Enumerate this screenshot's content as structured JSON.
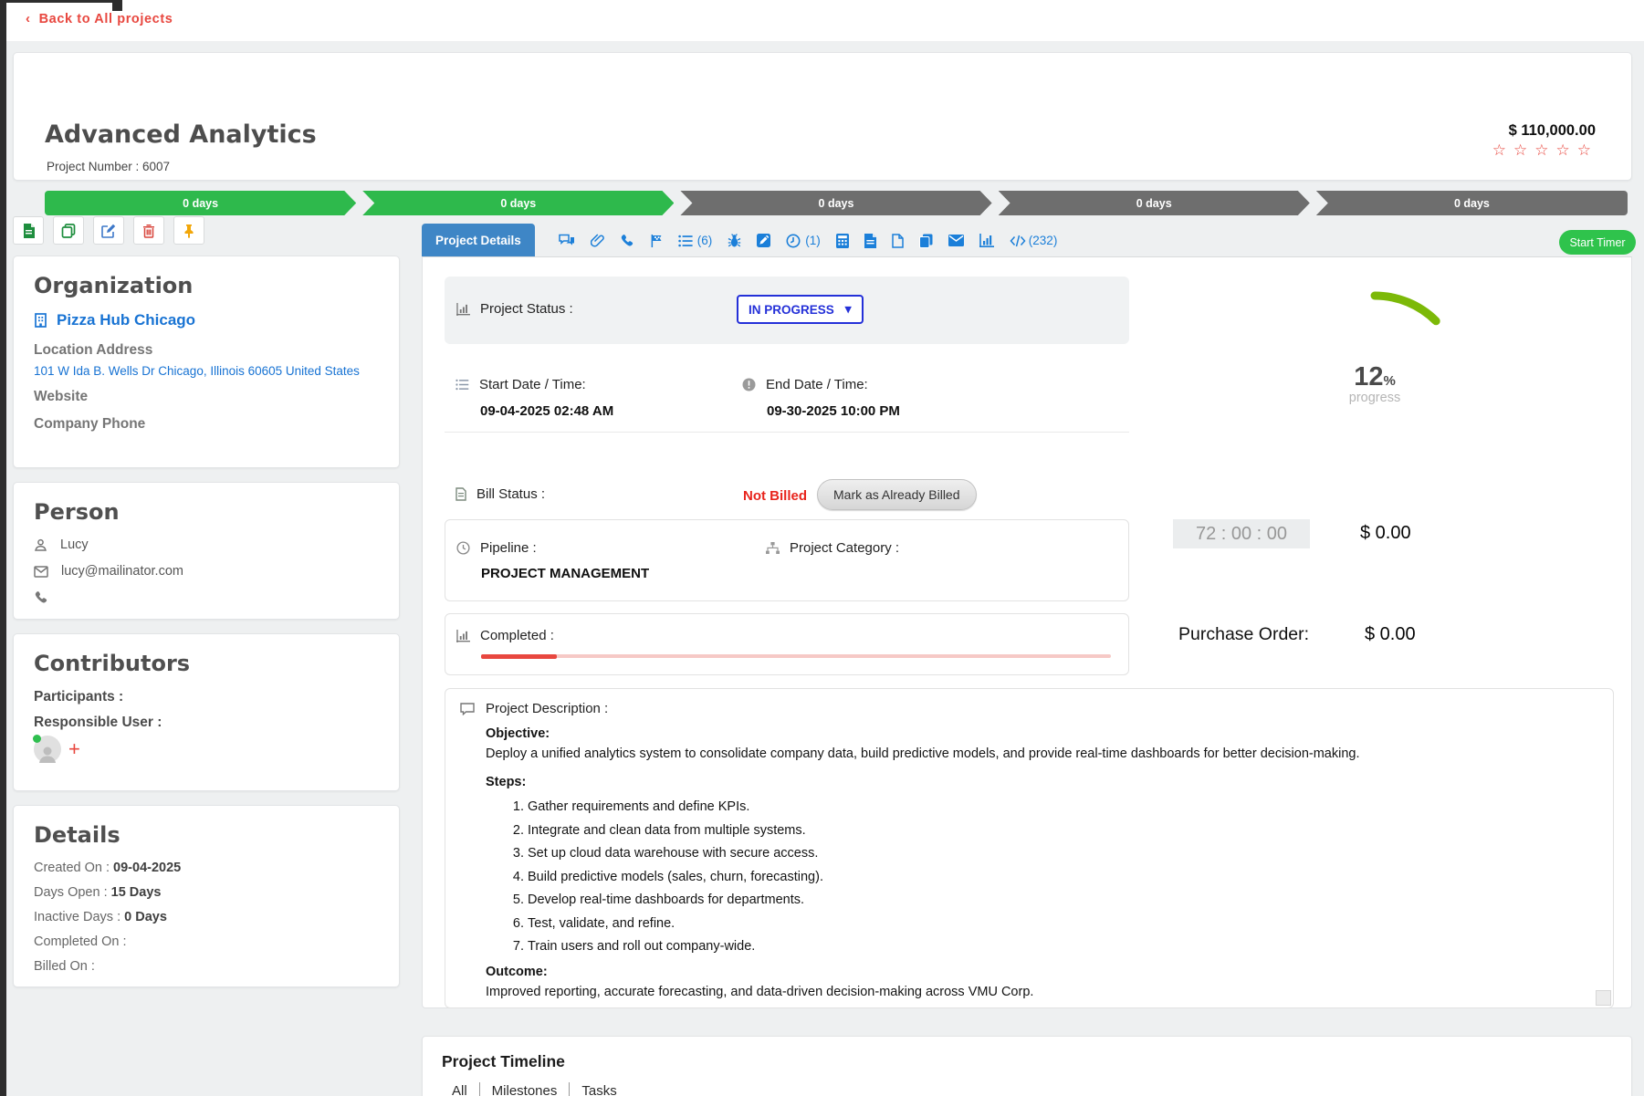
{
  "glyphs": {
    "back_chevron": "‹",
    "star": "☆",
    "caret_down": "▾",
    "plus": "+"
  },
  "colors": {
    "accent_red": "#e8473f",
    "stage_green": "#2eb94c",
    "stage_gray": "#6e6e6e",
    "icon_blue": "#1b7fd9",
    "tab_active_blue": "#3e86c6",
    "status_blue": "#2430d8",
    "gauge_green": "#7cb908",
    "timer_green": "#2fc34c"
  },
  "back_link": "Back to All projects",
  "header": {
    "title": "Advanced Analytics",
    "project_number": "Project Number : 6007",
    "amount": "$ 110,000.00",
    "stages": [
      {
        "label": "0 days"
      },
      {
        "label": "0 days"
      },
      {
        "label": "0 days"
      },
      {
        "label": "0 days"
      },
      {
        "label": "0 days"
      }
    ]
  },
  "sidebar": {
    "organization": {
      "title": "Organization",
      "company": "Pizza Hub Chicago",
      "location_label": "Location Address",
      "address": "101 W Ida B. Wells Dr Chicago, Illinois 60605 United States",
      "website_label": "Website",
      "phone_label": "Company Phone"
    },
    "person": {
      "title": "Person",
      "name": "Lucy",
      "email": "lucy@mailinator.com"
    },
    "contributors": {
      "title": "Contributors",
      "participants_label": "Participants :",
      "responsible_label": "Responsible User :"
    },
    "details": {
      "title": "Details",
      "rows": [
        {
          "label": "Created On : ",
          "value": "09-04-2025"
        },
        {
          "label": "Days Open : ",
          "value": "15 Days"
        },
        {
          "label": "Inactive Days : ",
          "value": "0 Days"
        },
        {
          "label": "Completed On : ",
          "value": ""
        },
        {
          "label": "Billed On : ",
          "value": ""
        }
      ]
    }
  },
  "tabs": {
    "active_label": "Project Details",
    "task_count": "(6)",
    "time_count": "(1)",
    "code_count": "(232)"
  },
  "start_timer_label": "Start Timer",
  "main": {
    "status": {
      "label": "Project Status :",
      "value": "IN PROGRESS"
    },
    "start": {
      "label": "Start Date / Time:",
      "value": "09-04-2025 02:48 AM"
    },
    "end": {
      "label": "End Date / Time:",
      "value": "09-30-2025 10:00 PM"
    },
    "bill": {
      "label": "Bill Status :",
      "status": "Not Billed",
      "action": "Mark as Already Billed"
    },
    "pipeline": {
      "label": "Pipeline :",
      "value": "PROJECT MANAGEMENT"
    },
    "category": {
      "label": "Project Category :",
      "value": ""
    },
    "completed": {
      "label": "Completed :",
      "percent": 12
    },
    "description": {
      "label": "Project Description :",
      "objective_label": "Objective:",
      "objective": "Deploy a unified analytics system to consolidate company data, build predictive models, and provide real-time dashboards for better decision-making.",
      "steps_label": "Steps:",
      "steps": [
        "Gather requirements and define KPIs.",
        "Integrate and clean data from multiple systems.",
        "Set up cloud data warehouse with secure access.",
        "Build predictive models (sales, churn, forecasting).",
        "Develop real-time dashboards for departments.",
        "Test, validate, and refine.",
        "Train users and roll out company-wide."
      ],
      "outcome_label": "Outcome:",
      "outcome": "Improved reporting, accurate forecasting, and data-driven decision-making across VMU Corp."
    }
  },
  "metrics": {
    "progress_value": "12",
    "progress_unit": "%",
    "progress_label": "progress",
    "timer": "72 : 00 : 00",
    "timer_amount": "$ 0.00",
    "purchase_order_label": "Purchase Order:",
    "purchase_order_value": "$ 0.00"
  },
  "timeline": {
    "title": "Project Timeline",
    "tabs": [
      "All",
      "Milestones",
      "Tasks"
    ]
  }
}
